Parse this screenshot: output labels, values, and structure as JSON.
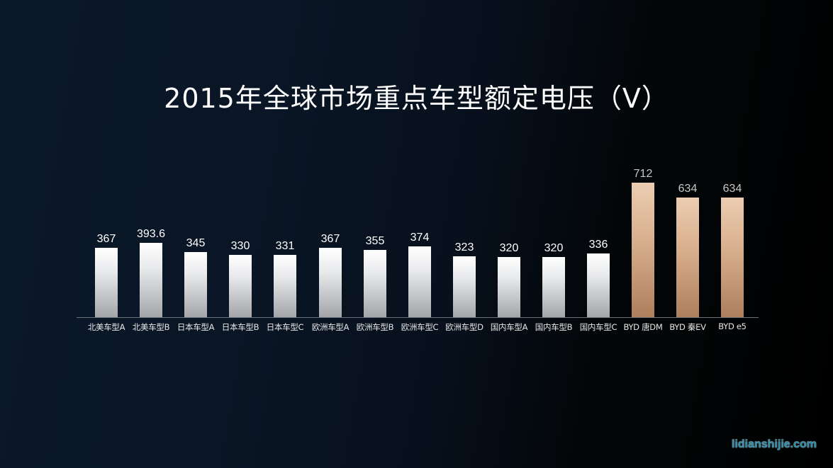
{
  "title": "2015年全球市场重点车型额定电压（V）",
  "watermark": "lidianshijie.com",
  "colors": {
    "background_left": "#0b1829",
    "background_right": "#000000",
    "bar_default_top": "#ffffff",
    "bar_default_bottom": "#a3a5a9",
    "bar_highlight_top": "#eccdb2",
    "bar_highlight_bottom": "#ad7f5c",
    "axis": "#6b7079",
    "watermark": "#2d8aa6"
  },
  "chart_data": {
    "type": "bar",
    "title": "2015年全球市场重点车型额定电压（V）",
    "xlabel": "",
    "ylabel": "额定电压 (V)",
    "ylim": [
      0,
      712
    ],
    "grid": false,
    "legend": null,
    "data_labels": true,
    "categories": [
      "北美车型A",
      "北美车型B",
      "日本车型A",
      "日本车型B",
      "日本车型C",
      "欧洲车型A",
      "欧洲车型B",
      "欧洲车型C",
      "欧洲车型D",
      "国内车型A",
      "国内车型B",
      "国内车型C",
      "BYD 唐DM",
      "BYD 秦EV",
      "BYD e5"
    ],
    "values": [
      367,
      393.6,
      345,
      330,
      331,
      367,
      355,
      374,
      323,
      320,
      320,
      336,
      712,
      634,
      634
    ],
    "labels": [
      "367",
      "393.6",
      "345",
      "330",
      "331",
      "367",
      "355",
      "374",
      "323",
      "320",
      "320",
      "336",
      "712",
      "634",
      "634"
    ],
    "highlighted": [
      false,
      false,
      false,
      false,
      false,
      false,
      false,
      false,
      false,
      false,
      false,
      false,
      true,
      true,
      true
    ]
  }
}
